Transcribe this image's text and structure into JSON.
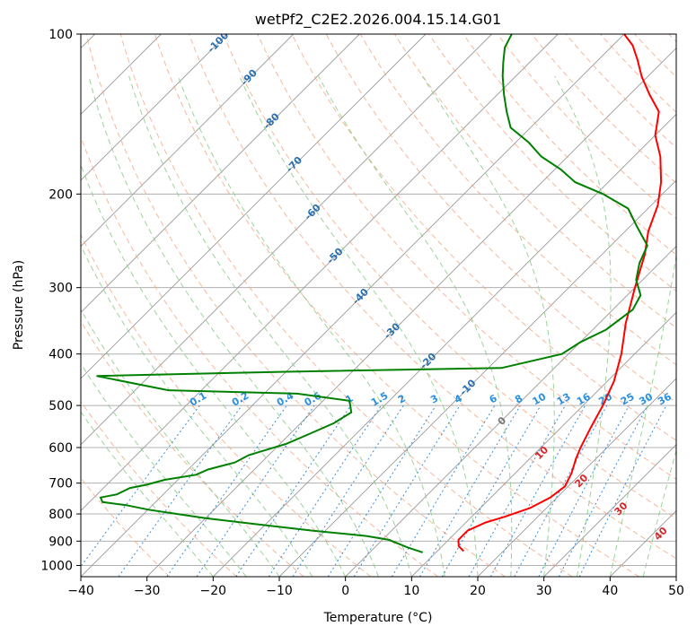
{
  "chart_data": {
    "type": "line",
    "title": "wetPf2_C2E2.2026.004.15.14.G01",
    "xlabel": "Temperature (°C)",
    "ylabel": "Pressure (hPa)",
    "xlim": [
      -40,
      50
    ],
    "ylim": [
      1050,
      100
    ],
    "y_scale": "log",
    "x_ticks": [
      "−40",
      "−30",
      "−20",
      "−10",
      "0",
      "10",
      "20",
      "30",
      "40",
      "50"
    ],
    "y_ticks": [
      "100",
      "200",
      "300",
      "400",
      "500",
      "600",
      "700",
      "800",
      "900",
      "1000"
    ],
    "grid": true,
    "series": [
      {
        "color": "#ff0000",
        "points": [
          [
            14,
            940
          ],
          [
            12.5,
            920
          ],
          [
            11.5,
            895
          ],
          [
            11.5,
            860
          ],
          [
            13,
            830
          ],
          [
            15,
            810
          ],
          [
            17.5,
            780
          ],
          [
            19,
            745
          ],
          [
            19.5,
            710
          ],
          [
            18.5,
            670
          ],
          [
            17,
            630
          ],
          [
            16,
            600
          ],
          [
            14.5,
            550
          ],
          [
            13,
            500
          ],
          [
            11,
            450
          ],
          [
            8,
            400
          ],
          [
            4,
            350
          ],
          [
            0,
            300
          ],
          [
            -3.5,
            260
          ],
          [
            -6.5,
            235
          ],
          [
            -9,
            210
          ],
          [
            -12,
            190
          ],
          [
            -16,
            170
          ],
          [
            -20,
            155
          ],
          [
            -23,
            140
          ],
          [
            -27,
            130
          ],
          [
            -31,
            120
          ],
          [
            -34,
            112
          ],
          [
            -37,
            105
          ],
          [
            -40,
            100
          ]
        ]
      },
      {
        "color": "#008000",
        "points": [
          [
            8,
            945
          ],
          [
            5,
            925
          ],
          [
            3,
            910
          ],
          [
            1,
            895
          ],
          [
            -3,
            880
          ],
          [
            -12,
            860
          ],
          [
            -22,
            835
          ],
          [
            -30,
            815
          ],
          [
            -35,
            800
          ],
          [
            -40,
            785
          ],
          [
            -44,
            770
          ],
          [
            -48,
            760
          ],
          [
            -49,
            745
          ],
          [
            -47,
            735
          ],
          [
            -46,
            715
          ],
          [
            -44,
            705
          ],
          [
            -42,
            690
          ],
          [
            -38,
            675
          ],
          [
            -37,
            660
          ],
          [
            -34,
            640
          ],
          [
            -33,
            620
          ],
          [
            -31,
            605
          ],
          [
            -29,
            590
          ],
          [
            -27,
            565
          ],
          [
            -25,
            540
          ],
          [
            -24,
            515
          ],
          [
            -26,
            490
          ],
          [
            -35,
            475
          ],
          [
            -55,
            468
          ],
          [
            -68,
            440
          ],
          [
            -40,
            432
          ],
          [
            -8,
            425
          ],
          [
            -1,
            400
          ],
          [
            0,
            380
          ],
          [
            2,
            360
          ],
          [
            3,
            330
          ],
          [
            2,
            310
          ],
          [
            -1,
            290
          ],
          [
            -3,
            270
          ],
          [
            -4.5,
            250
          ],
          [
            -9,
            230
          ],
          [
            -13,
            213
          ],
          [
            -19,
            200
          ],
          [
            -25,
            190
          ],
          [
            -29,
            180
          ],
          [
            -34,
            170
          ],
          [
            -38,
            160
          ],
          [
            -43,
            150
          ],
          [
            -46,
            140
          ],
          [
            -49,
            130
          ],
          [
            -52,
            120
          ],
          [
            -54,
            113
          ],
          [
            -56,
            106
          ],
          [
            -57,
            100
          ]
        ]
      }
    ],
    "isotherm_labels": [
      "-100",
      "-90",
      "-80",
      "-70",
      "-60",
      "-50",
      "-40",
      "-30",
      "-20",
      "-10"
    ],
    "mixing_ratio_labels": [
      "0.1",
      "0.2",
      "0.4",
      "0.6",
      "1",
      "1.5",
      "2",
      "3",
      "4",
      "6",
      "8",
      "10",
      "13",
      "16",
      "20",
      "25",
      "30",
      "36"
    ],
    "moist_adiabat_labels": [
      "0",
      "10",
      "20",
      "30",
      "40"
    ],
    "colors": {
      "temperature": "#ff0000",
      "dewpoint": "#008000",
      "isotherm": "#999999",
      "dry_adiabat": "#f4a582",
      "moist_adiabat": "#88cc88",
      "mixing_ratio": "#3a8fd8",
      "isotherm_label": "#2a6fb0",
      "mixing_label": "#2a8fe0",
      "moist_label": "#d62728",
      "moist_zero_label": "#777777",
      "extra_adiabat": "#d2b48c"
    }
  }
}
